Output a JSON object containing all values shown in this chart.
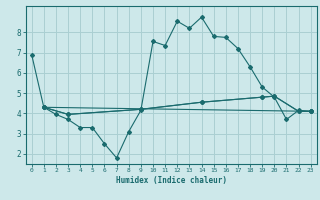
{
  "xlabel": "Humidex (Indice chaleur)",
  "ylabel": "",
  "bg_color": "#cde8ea",
  "grid_color": "#aacfd2",
  "line_color": "#1a6b6e",
  "xlim": [
    -0.5,
    23.5
  ],
  "ylim": [
    1.5,
    9.3
  ],
  "yticks": [
    2,
    3,
    4,
    5,
    6,
    7,
    8
  ],
  "xticks": [
    0,
    1,
    2,
    3,
    4,
    5,
    6,
    7,
    8,
    9,
    10,
    11,
    12,
    13,
    14,
    15,
    16,
    17,
    18,
    19,
    20,
    21,
    22,
    23
  ],
  "lines": [
    {
      "x": [
        0,
        1,
        2,
        3,
        4,
        5,
        6,
        7,
        8,
        9,
        10,
        11,
        12,
        13,
        14,
        15,
        16,
        17,
        18,
        19,
        20,
        21,
        22,
        23
      ],
      "y": [
        6.9,
        4.3,
        3.95,
        3.7,
        3.3,
        3.3,
        2.5,
        1.8,
        3.1,
        4.15,
        7.55,
        7.35,
        8.55,
        8.2,
        8.75,
        7.8,
        7.75,
        7.2,
        6.3,
        5.3,
        4.8,
        3.7,
        4.15,
        4.1
      ]
    },
    {
      "x": [
        1,
        3,
        9,
        14,
        19,
        20,
        22,
        23
      ],
      "y": [
        4.3,
        3.95,
        4.2,
        4.55,
        4.8,
        4.85,
        4.1,
        4.1
      ]
    },
    {
      "x": [
        1,
        3,
        9,
        14,
        19,
        20,
        22,
        23
      ],
      "y": [
        4.3,
        3.95,
        4.2,
        4.55,
        4.8,
        4.85,
        4.1,
        4.1
      ]
    },
    {
      "x": [
        1,
        23
      ],
      "y": [
        4.3,
        4.1
      ]
    }
  ]
}
